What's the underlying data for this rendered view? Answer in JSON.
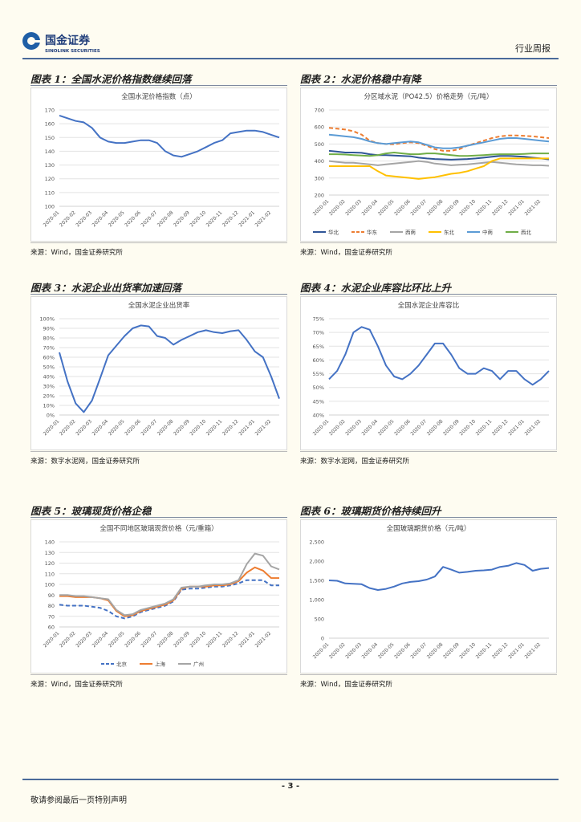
{
  "header": {
    "company": "国金证券",
    "company_en": "SINOLINK SECURITIES",
    "report_type": "行业周报"
  },
  "footer": {
    "page": "- 3 -",
    "note": "敬请参阅最后一页特别声明"
  },
  "figures": [
    {
      "caption": "图表 1：全国水泥价格指数继续回落",
      "source": "来源：Wind，国金证券研究所"
    },
    {
      "caption": "图表 2：水泥价格稳中有降",
      "source": "来源：Wind，国金证券研究所"
    },
    {
      "caption": "图表 3：水泥企业出货率加速回落",
      "source": "来源：数字水泥网，国金证券研究所"
    },
    {
      "caption": "图表 4：水泥企业库容比环比上升",
      "source": "来源：数字水泥网，国金证券研究所"
    },
    {
      "caption": "图表 5：玻璃现货价格企稳",
      "source": "来源：Wind，国金证券研究所"
    },
    {
      "caption": "图表 6：玻璃期货价格持续回升",
      "source": "来源：Wind，国金证券研究所"
    }
  ],
  "chart_data": [
    {
      "type": "line",
      "title": "全国水泥价格指数（点）",
      "categories": [
        "2020-01",
        null,
        "2020-02",
        null,
        "2020-03",
        null,
        "2020-04",
        null,
        "2020-05",
        null,
        "2020-06",
        null,
        "2020-07",
        null,
        "2020-08",
        null,
        "2020-09",
        null,
        "2020-10",
        null,
        "2020-11",
        null,
        "2020-12",
        null,
        "2021-01",
        null,
        "2021-02",
        null
      ],
      "values": [
        166,
        164,
        162,
        161,
        157,
        150,
        147,
        146,
        146,
        147,
        148,
        148,
        146,
        140,
        137,
        136,
        138,
        140,
        143,
        146,
        148,
        153,
        154,
        155,
        155,
        154,
        152,
        150
      ],
      "color": "#4472c4",
      "ylim": [
        100,
        170
      ],
      "yticks": [
        100,
        110,
        120,
        130,
        140,
        150,
        160,
        170
      ],
      "grid": true
    },
    {
      "type": "line",
      "title": "分区域水泥（PO42.5）价格走势（元/吨）",
      "categories": [
        "2020-01",
        null,
        "2020-02",
        null,
        "2020-03",
        null,
        "2020-04",
        null,
        "2020-05",
        null,
        "2020-06",
        null,
        "2020-07",
        null,
        "2020-08",
        null,
        "2020-09",
        null,
        "2020-10",
        null,
        "2020-11",
        null,
        "2020-12",
        null,
        "2021-01",
        null,
        "2021-02",
        null
      ],
      "series": [
        {
          "name": "华北",
          "color": "#2f5597",
          "dashed": false,
          "values": [
            460,
            455,
            450,
            450,
            448,
            440,
            435,
            435,
            432,
            430,
            428,
            420,
            415,
            412,
            410,
            408,
            410,
            412,
            415,
            420,
            425,
            430,
            430,
            428,
            425,
            420,
            415,
            410
          ]
        },
        {
          "name": "华东",
          "color": "#ed7d31",
          "dashed": true,
          "values": [
            595,
            590,
            585,
            575,
            555,
            520,
            505,
            500,
            498,
            505,
            510,
            505,
            490,
            470,
            460,
            460,
            470,
            490,
            505,
            520,
            535,
            545,
            550,
            550,
            548,
            545,
            540,
            535
          ]
        },
        {
          "name": "西南",
          "color": "#a5a5a5",
          "dashed": false,
          "values": [
            400,
            395,
            390,
            390,
            385,
            380,
            375,
            380,
            385,
            390,
            395,
            400,
            395,
            385,
            380,
            375,
            378,
            380,
            385,
            390,
            395,
            390,
            385,
            380,
            378,
            375,
            375,
            372
          ]
        },
        {
          "name": "东北",
          "color": "#ffc000",
          "dashed": false,
          "values": [
            370,
            370,
            370,
            370,
            370,
            370,
            340,
            315,
            310,
            305,
            300,
            295,
            300,
            305,
            315,
            325,
            330,
            340,
            355,
            370,
            400,
            415,
            415,
            415,
            415,
            415,
            415,
            415
          ]
        },
        {
          "name": "中南",
          "color": "#5b9bd5",
          "dashed": false,
          "values": [
            555,
            550,
            545,
            540,
            530,
            515,
            505,
            500,
            505,
            510,
            515,
            510,
            495,
            480,
            475,
            475,
            480,
            490,
            500,
            510,
            520,
            530,
            535,
            535,
            530,
            525,
            520,
            515
          ]
        },
        {
          "name": "西北",
          "color": "#70ad47",
          "dashed": false,
          "values": [
            440,
            440,
            438,
            435,
            432,
            430,
            435,
            445,
            450,
            445,
            440,
            440,
            445,
            445,
            440,
            435,
            430,
            430,
            432,
            435,
            438,
            440,
            440,
            440,
            442,
            445,
            445,
            445
          ]
        }
      ],
      "ylim": [
        200,
        700
      ],
      "yticks": [
        200,
        300,
        400,
        500,
        600,
        700
      ],
      "grid": true,
      "legend": "bottom"
    },
    {
      "type": "line",
      "title": "全国水泥企业出货率",
      "categories": [
        "2020-01",
        null,
        "2020-02",
        null,
        "2020-03",
        null,
        "2020-04",
        null,
        "2020-05",
        null,
        "2020-06",
        null,
        "2020-07",
        null,
        "2020-08",
        null,
        "2020-09",
        null,
        "2020-10",
        null,
        "2020-11",
        null,
        "2020-12",
        null,
        "2021-01",
        null,
        "2021-02",
        null
      ],
      "values": [
        65,
        35,
        12,
        3,
        15,
        38,
        62,
        72,
        82,
        90,
        93,
        92,
        82,
        80,
        73,
        78,
        82,
        86,
        88,
        86,
        85,
        87,
        88,
        78,
        66,
        60,
        40,
        17
      ],
      "color": "#4472c4",
      "ylim": [
        0,
        100
      ],
      "yticks": [
        {
          "value": 0,
          "label": "0%"
        },
        {
          "value": 10,
          "label": "10%"
        },
        {
          "value": 20,
          "label": "20%"
        },
        {
          "value": 30,
          "label": "30%"
        },
        {
          "value": 40,
          "label": "40%"
        },
        {
          "value": 50,
          "label": "50%"
        },
        {
          "value": 60,
          "label": "60%"
        },
        {
          "value": 70,
          "label": "70%"
        },
        {
          "value": 80,
          "label": "80%"
        },
        {
          "value": 90,
          "label": "90%"
        },
        {
          "value": 100,
          "label": "100%"
        }
      ],
      "grid": true
    },
    {
      "type": "line",
      "title": "全国水泥企业库容比",
      "categories": [
        "2020-01",
        null,
        "2020-02",
        null,
        "2020-03",
        null,
        "2020-04",
        null,
        "2020-05",
        null,
        "2020-06",
        null,
        "2020-07",
        null,
        "2020-08",
        null,
        "2020-09",
        null,
        "2020-10",
        null,
        "2020-11",
        null,
        "2020-12",
        null,
        "2021-01",
        null,
        "2021-02",
        null
      ],
      "values": [
        53,
        56,
        62,
        70,
        72,
        71,
        65,
        58,
        54,
        53,
        55,
        58,
        62,
        66,
        66,
        62,
        57,
        55,
        55,
        57,
        56,
        53,
        56,
        56,
        53,
        51,
        53,
        56
      ],
      "color": "#4472c4",
      "ylim": [
        40,
        75
      ],
      "yticks": [
        {
          "value": 40,
          "label": "40%"
        },
        {
          "value": 45,
          "label": "45%"
        },
        {
          "value": 50,
          "label": "50%"
        },
        {
          "value": 55,
          "label": "55%"
        },
        {
          "value": 60,
          "label": "60%"
        },
        {
          "value": 65,
          "label": "65%"
        },
        {
          "value": 70,
          "label": "70%"
        },
        {
          "value": 75,
          "label": "75%"
        }
      ],
      "grid": true
    },
    {
      "type": "line",
      "title": "全国不同地区玻璃现货价格（元/重箱）",
      "categories": [
        "2020-01",
        null,
        "2020-02",
        null,
        "2020-03",
        null,
        "2020-04",
        null,
        "2020-05",
        null,
        "2020-06",
        null,
        "2020-07",
        null,
        "2020-08",
        null,
        "2020-09",
        null,
        "2020-10",
        null,
        "2020-11",
        null,
        "2020-12",
        null,
        "2021-01",
        null,
        "2021-02",
        null
      ],
      "series": [
        {
          "name": "北京",
          "color": "#4472c4",
          "dashed": true,
          "values": [
            81,
            80,
            80,
            80,
            79,
            78,
            75,
            70,
            68,
            70,
            74,
            76,
            78,
            80,
            84,
            95,
            96,
            96,
            97,
            98,
            98,
            99,
            101,
            104,
            104,
            104,
            99,
            99
          ]
        },
        {
          "name": "上海",
          "color": "#ed7d31",
          "dashed": false,
          "values": [
            89,
            89,
            88,
            88,
            88,
            87,
            85,
            75,
            70,
            71,
            75,
            77,
            79,
            81,
            85,
            96,
            98,
            98,
            98,
            99,
            99,
            100,
            103,
            111,
            116,
            113,
            106,
            106
          ]
        },
        {
          "name": "广州",
          "color": "#a5a5a5",
          "dashed": false,
          "values": [
            90,
            90,
            89,
            89,
            88,
            87,
            86,
            76,
            71,
            72,
            76,
            78,
            80,
            82,
            86,
            97,
            98,
            98,
            99,
            100,
            100,
            101,
            104,
            119,
            129,
            127,
            117,
            114
          ]
        }
      ],
      "ylim": [
        60,
        140
      ],
      "yticks": [
        60,
        70,
        80,
        90,
        100,
        110,
        120,
        130,
        140
      ],
      "grid": true,
      "legend": "bottom"
    },
    {
      "type": "line",
      "title": "全国玻璃期货价格（元/吨）",
      "categories": [
        "2020-01",
        null,
        "2020-02",
        null,
        "2020-03",
        null,
        "2020-04",
        null,
        "2020-05",
        null,
        "2020-06",
        null,
        "2020-07",
        null,
        "2020-08",
        null,
        "2020-09",
        null,
        "2020-10",
        null,
        "2020-11",
        null,
        "2020-12",
        null,
        "2021-01",
        null,
        "2021-02",
        null
      ],
      "values": [
        1500,
        1490,
        1420,
        1410,
        1400,
        1300,
        1250,
        1280,
        1340,
        1420,
        1460,
        1480,
        1520,
        1600,
        1850,
        1780,
        1700,
        1720,
        1750,
        1760,
        1780,
        1850,
        1880,
        1950,
        1900,
        1750,
        1800,
        1820
      ],
      "color": "#4472c4",
      "ylim": [
        0,
        2500
      ],
      "yticks": [
        0,
        500,
        {
          "value": 1000,
          "label": "1,000"
        },
        {
          "value": 1500,
          "label": "1,500"
        },
        {
          "value": 2000,
          "label": "2,000"
        },
        {
          "value": 2500,
          "label": "2,500"
        }
      ],
      "grid": false
    }
  ]
}
